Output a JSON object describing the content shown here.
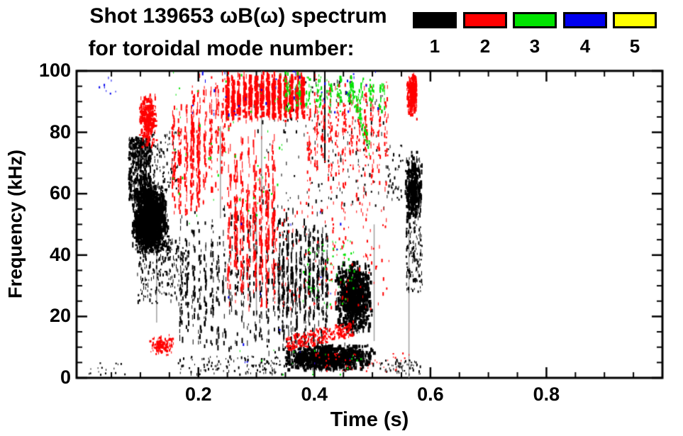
{
  "header": {
    "line1": "Shot 139653 ωB(ω) spectrum",
    "line2": "for toroidal mode number:"
  },
  "legend": {
    "items": [
      {
        "label": "1",
        "color": "#000000"
      },
      {
        "label": "2",
        "color": "#ff0000"
      },
      {
        "label": "3",
        "color": "#00e300"
      },
      {
        "label": "4",
        "color": "#0000ee"
      },
      {
        "label": "5",
        "color": "#ffff00"
      }
    ]
  },
  "chart_data": {
    "type": "scatter",
    "subtype": "spectrogram-mode-scatter",
    "title": "Shot 139653 ωB(ω) spectrum for toroidal mode number: 1 2 3 4 5",
    "xlabel": "Time (s)",
    "ylabel": "Frequency (kHz)",
    "xlim": [
      -0.01,
      1.0
    ],
    "ylim": [
      0,
      100
    ],
    "xticks": [
      {
        "v": 0.2,
        "label": "0.2"
      },
      {
        "v": 0.4,
        "label": "0.4"
      },
      {
        "v": 0.6,
        "label": "0.6"
      },
      {
        "v": 0.8,
        "label": "0.8"
      }
    ],
    "yticks": [
      {
        "v": 0,
        "label": "0"
      },
      {
        "v": 20,
        "label": "20"
      },
      {
        "v": 40,
        "label": "40"
      },
      {
        "v": 60,
        "label": "60"
      },
      {
        "v": 80,
        "label": "80"
      },
      {
        "v": 100,
        "label": "100"
      }
    ],
    "minor_tick_x": 0.05,
    "minor_tick_y": 5,
    "grid": false,
    "frame_color": "#000000",
    "legend_position": "top-right",
    "modes": [
      {
        "n": 1,
        "color": "#000000",
        "points_visible": true
      },
      {
        "n": 2,
        "color": "#ff0000",
        "points_visible": true
      },
      {
        "n": 3,
        "color": "#00e300",
        "points_visible": true
      },
      {
        "n": 4,
        "color": "#0000ee",
        "points_visible": true
      },
      {
        "n": 5,
        "color": "#ffff00",
        "points_visible": false
      }
    ],
    "clusters": [
      {
        "id": "b-main-top",
        "mode_n": 1,
        "color": "#000000",
        "t": [
          0.08,
          0.118
        ],
        "f": [
          58,
          78
        ],
        "n": 450,
        "style": "scatter",
        "w": 3,
        "h": [
          2,
          7
        ]
      },
      {
        "id": "b-main-core",
        "mode_n": 1,
        "color": "#000000",
        "t": [
          0.085,
          0.15
        ],
        "f": [
          40,
          63
        ],
        "n": 1500,
        "style": "scatter",
        "bias": "center",
        "w": 4,
        "h": [
          2,
          8
        ]
      },
      {
        "id": "b-main-upper",
        "mode_n": 1,
        "color": "#000000",
        "t": [
          0.105,
          0.165
        ],
        "f": [
          60,
          80
        ],
        "n": 130,
        "style": "scatter",
        "w": 2,
        "h": [
          2,
          5
        ]
      },
      {
        "id": "b-main-tail",
        "mode_n": 1,
        "color": "#000000",
        "t": [
          0.095,
          0.185
        ],
        "f": [
          24,
          46
        ],
        "n": 240,
        "style": "scatter",
        "w": 2,
        "h": [
          2,
          6
        ]
      },
      {
        "id": "b-cols-left",
        "mode_n": 1,
        "color": "#000000",
        "t": [
          0.165,
          0.335
        ],
        "f": [
          4,
          58
        ],
        "n": 500,
        "style": "columns",
        "cols": 16,
        "w": 2,
        "h": [
          3,
          9
        ]
      },
      {
        "id": "b-cols-mid",
        "mode_n": 1,
        "color": "#000000",
        "t": [
          0.335,
          0.425
        ],
        "f": [
          3,
          58
        ],
        "n": 620,
        "style": "columns",
        "cols": 12,
        "w": 2,
        "h": [
          3,
          10
        ]
      },
      {
        "id": "b-blob",
        "mode_n": 1,
        "color": "#000000",
        "t": [
          0.435,
          0.5
        ],
        "f": [
          14,
          38
        ],
        "n": 800,
        "style": "scatter",
        "bias": "center",
        "w": 4,
        "h": [
          3,
          8
        ]
      },
      {
        "id": "b-bottom-band",
        "mode_n": 1,
        "color": "#000000",
        "t": [
          0.345,
          0.505
        ],
        "f": [
          2,
          11
        ],
        "n": 1000,
        "style": "scatter",
        "bias": "center",
        "w": 4,
        "h": [
          3,
          6
        ]
      },
      {
        "id": "b-bottom-left-sparse",
        "mode_n": 1,
        "color": "#000000",
        "t": [
          0.165,
          0.345
        ],
        "f": [
          1,
          7
        ],
        "n": 120,
        "style": "scatter",
        "w": 2,
        "h": [
          2,
          4
        ]
      },
      {
        "id": "b-bottom-right-sparse",
        "mode_n": 1,
        "color": "#000000",
        "t": [
          0.505,
          0.585
        ],
        "f": [
          1,
          6
        ],
        "n": 60,
        "style": "scatter",
        "w": 2,
        "h": [
          2,
          4
        ]
      },
      {
        "id": "b-right-upper",
        "mode_n": 1,
        "color": "#000000",
        "t": [
          0.555,
          0.588
        ],
        "f": [
          50,
          74
        ],
        "n": 340,
        "style": "scatter",
        "bias": "center",
        "w": 3,
        "h": [
          3,
          8
        ]
      },
      {
        "id": "b-right-lower",
        "mode_n": 1,
        "color": "#000000",
        "t": [
          0.558,
          0.586
        ],
        "f": [
          28,
          50
        ],
        "n": 110,
        "style": "scatter",
        "w": 2,
        "h": [
          2,
          6
        ]
      },
      {
        "id": "b-high-sparse",
        "mode_n": 1,
        "color": "#000000",
        "t": [
          0.295,
          0.52
        ],
        "f": [
          55,
          97
        ],
        "n": 160,
        "style": "scatter",
        "w": 2,
        "h": [
          2,
          6
        ]
      },
      {
        "id": "b-pre-right",
        "mode_n": 1,
        "color": "#000000",
        "t": [
          0.522,
          0.553
        ],
        "f": [
          58,
          76
        ],
        "n": 40,
        "style": "scatter",
        "w": 2,
        "h": [
          2,
          5
        ]
      },
      {
        "id": "b-left-dots",
        "mode_n": 1,
        "color": "#000000",
        "t": [
          0.01,
          0.078
        ],
        "f": [
          1,
          5
        ],
        "n": 16,
        "style": "scatter",
        "w": 2,
        "h": [
          2,
          3
        ]
      },
      {
        "id": "r-left-blob",
        "mode_n": 2,
        "color": "#ff0000",
        "t": [
          0.098,
          0.13
        ],
        "f": [
          74,
          93
        ],
        "n": 250,
        "style": "scatter",
        "bias": "center",
        "w": 3,
        "h": [
          2,
          7
        ]
      },
      {
        "id": "r-left-cols",
        "mode_n": 2,
        "color": "#ff0000",
        "t": [
          0.152,
          0.205
        ],
        "f": [
          50,
          92
        ],
        "n": 230,
        "style": "columns",
        "cols": 5,
        "w": 2,
        "h": [
          3,
          9
        ]
      },
      {
        "id": "r-mid-cols",
        "mode_n": 2,
        "color": "#ff0000",
        "t": [
          0.185,
          0.248
        ],
        "f": [
          55,
          100
        ],
        "n": 250,
        "style": "columns",
        "cols": 6,
        "w": 2,
        "h": [
          3,
          9
        ]
      },
      {
        "id": "r-top-band",
        "mode_n": 2,
        "color": "#ff0000",
        "t": [
          0.245,
          0.385
        ],
        "f": [
          83,
          100
        ],
        "n": 950,
        "style": "columns",
        "cols": 14,
        "w": 3,
        "h": [
          3,
          8
        ]
      },
      {
        "id": "r-top-scatter",
        "mode_n": 2,
        "color": "#ff0000",
        "t": [
          0.385,
          0.53
        ],
        "f": [
          60,
          100
        ],
        "n": 400,
        "style": "columns",
        "cols": 12,
        "w": 2,
        "h": [
          2,
          7
        ]
      },
      {
        "id": "r-tall-cols",
        "mode_n": 2,
        "color": "#ff0000",
        "t": [
          0.248,
          0.335
        ],
        "f": [
          20,
          83
        ],
        "n": 450,
        "style": "columns",
        "cols": 8,
        "w": 2,
        "h": [
          4,
          12
        ]
      },
      {
        "id": "r-arc",
        "mode_n": 2,
        "color": "#ff0000",
        "t": [
          0.352,
          0.468
        ],
        "f": [
          11,
          16
        ],
        "n": 260,
        "style": "trend",
        "jit": 2.5,
        "w": 3,
        "h": [
          2,
          4
        ]
      },
      {
        "id": "r-low-left",
        "mode_n": 2,
        "color": "#ff0000",
        "t": [
          0.115,
          0.158
        ],
        "f": [
          7,
          14
        ],
        "n": 130,
        "style": "scatter",
        "bias": "center",
        "w": 3,
        "h": [
          2,
          4
        ]
      },
      {
        "id": "r-right-blob",
        "mode_n": 2,
        "color": "#ff0000",
        "t": [
          0.558,
          0.578
        ],
        "f": [
          84,
          100
        ],
        "n": 230,
        "style": "scatter",
        "bias": "center",
        "w": 3,
        "h": [
          3,
          7
        ]
      },
      {
        "id": "r-mid-sparse",
        "mode_n": 2,
        "color": "#ff0000",
        "t": [
          0.33,
          0.53
        ],
        "f": [
          22,
          60
        ],
        "n": 160,
        "style": "scatter",
        "w": 2,
        "h": [
          2,
          6
        ]
      },
      {
        "id": "r-bottom-specks",
        "mode_n": 2,
        "color": "#ff0000",
        "t": [
          0.4,
          0.565
        ],
        "f": [
          2,
          8
        ],
        "n": 50,
        "style": "scatter",
        "w": 2,
        "h": [
          2,
          3
        ]
      },
      {
        "id": "g-top",
        "mode_n": 3,
        "color": "#00e300",
        "t": [
          0.345,
          0.525
        ],
        "f": [
          86,
          100
        ],
        "n": 220,
        "style": "columns",
        "cols": 10,
        "w": 2,
        "h": [
          2,
          6
        ]
      },
      {
        "id": "g-trail",
        "mode_n": 3,
        "color": "#00e300",
        "t": [
          0.462,
          0.495
        ],
        "f": [
          96,
          75
        ],
        "n": 85,
        "style": "trend",
        "jit": 3,
        "w": 2,
        "h": [
          2,
          5
        ]
      },
      {
        "id": "g-mid",
        "mode_n": 3,
        "color": "#00e300",
        "t": [
          0.375,
          0.47
        ],
        "f": [
          23,
          45
        ],
        "n": 65,
        "style": "scatter",
        "w": 2,
        "h": [
          2,
          4
        ]
      },
      {
        "id": "g-early",
        "mode_n": 3,
        "color": "#00e300",
        "t": [
          0.14,
          0.345
        ],
        "f": [
          50,
          100
        ],
        "n": 50,
        "style": "scatter",
        "w": 2,
        "h": [
          2,
          4
        ]
      },
      {
        "id": "g-low",
        "mode_n": 3,
        "color": "#00e300",
        "t": [
          0.27,
          0.52
        ],
        "f": [
          1,
          9
        ],
        "n": 16,
        "style": "scatter",
        "w": 2,
        "h": [
          2,
          3
        ]
      },
      {
        "id": "bl-top",
        "mode_n": 4,
        "color": "#0000ee",
        "t": [
          0.18,
          0.52
        ],
        "f": [
          85,
          100
        ],
        "n": 40,
        "style": "scatter",
        "w": 2,
        "h": [
          2,
          5
        ]
      },
      {
        "id": "bl-left",
        "mode_n": 4,
        "color": "#0000ee",
        "t": [
          0.02,
          0.062
        ],
        "f": [
          88,
          98
        ],
        "n": 8,
        "style": "scatter",
        "w": 2,
        "h": [
          2,
          4
        ]
      },
      {
        "id": "bl-specks",
        "mode_n": 4,
        "color": "#0000ee",
        "t": [
          0.24,
          0.47
        ],
        "f": [
          2,
          60
        ],
        "n": 16,
        "style": "scatter",
        "w": 2,
        "h": [
          2,
          4
        ]
      }
    ],
    "vlines": [
      {
        "t": 0.309,
        "f": [
          58,
          100
        ],
        "color": "#8a8a8a",
        "w": 1.5,
        "alpha": 0.8
      },
      {
        "t": 0.563,
        "f": [
          0,
          56
        ],
        "color": "#8a8a8a",
        "w": 1.5,
        "alpha": 0.8
      },
      {
        "t": 0.128,
        "f": [
          18,
          58
        ],
        "color": "#8a8a8a",
        "w": 1.5,
        "alpha": 0.8
      },
      {
        "t": 0.238,
        "f": [
          52,
          82
        ],
        "color": "#8a8a8a",
        "w": 1.5,
        "alpha": 0.8
      },
      {
        "t": 0.503,
        "f": [
          12,
          50
        ],
        "color": "#8a8a8a",
        "w": 1.5,
        "alpha": 0.8
      },
      {
        "t": 0.3,
        "f": [
          20,
          55
        ],
        "color": "#8a8a8a",
        "w": 1.5,
        "alpha": 0.8
      },
      {
        "t": 0.418,
        "f": [
          70,
          100
        ],
        "color": "#000000",
        "w": 2,
        "alpha": 1
      }
    ]
  }
}
